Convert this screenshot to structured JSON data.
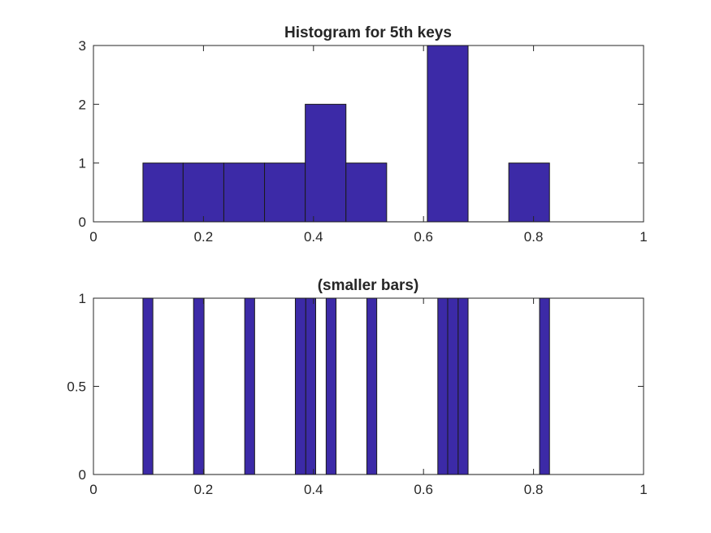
{
  "colors": {
    "bar_fill": "#3c2aa7",
    "axis": "#262626",
    "background": "#ffffff"
  },
  "chart_data": [
    {
      "type": "bar",
      "subtype": "histogram",
      "title": "Histogram for 5th keys",
      "xlabel": "",
      "ylabel": "",
      "xlim": [
        0,
        1
      ],
      "ylim": [
        0,
        3
      ],
      "xticks": [
        0,
        0.2,
        0.4,
        0.6,
        0.8,
        1
      ],
      "xtick_labels": [
        "0",
        "0.2",
        "0.4",
        "0.6",
        "0.8",
        "1"
      ],
      "yticks": [
        0,
        1,
        2,
        3
      ],
      "ytick_labels": [
        "0",
        "1",
        "2",
        "3"
      ],
      "grid": false,
      "bins": [
        {
          "x0": 0.09,
          "x1": 0.163,
          "count": 1
        },
        {
          "x0": 0.163,
          "x1": 0.237,
          "count": 1
        },
        {
          "x0": 0.237,
          "x1": 0.311,
          "count": 1
        },
        {
          "x0": 0.311,
          "x1": 0.385,
          "count": 1
        },
        {
          "x0": 0.385,
          "x1": 0.459,
          "count": 2
        },
        {
          "x0": 0.459,
          "x1": 0.533,
          "count": 1
        },
        {
          "x0": 0.533,
          "x1": 0.607,
          "count": 0
        },
        {
          "x0": 0.607,
          "x1": 0.681,
          "count": 3
        },
        {
          "x0": 0.681,
          "x1": 0.755,
          "count": 0
        },
        {
          "x0": 0.755,
          "x1": 0.829,
          "count": 1
        }
      ]
    },
    {
      "type": "bar",
      "subtype": "histogram",
      "title": "(smaller bars)",
      "xlabel": "",
      "ylabel": "",
      "xlim": [
        0,
        1
      ],
      "ylim": [
        0,
        1
      ],
      "xticks": [
        0,
        0.2,
        0.4,
        0.6,
        0.8,
        1
      ],
      "xtick_labels": [
        "0",
        "0.2",
        "0.4",
        "0.6",
        "0.8",
        "1"
      ],
      "yticks": [
        0,
        0.5,
        1
      ],
      "ytick_labels": [
        "0",
        "0.5",
        "1"
      ],
      "grid": false,
      "bin_range": [
        0.09,
        0.829
      ],
      "bin_width": 0.0185,
      "bins": [
        {
          "x0": 0.09,
          "x1": 0.108,
          "count": 1
        },
        {
          "x0": 0.182,
          "x1": 0.201,
          "count": 1
        },
        {
          "x0": 0.275,
          "x1": 0.293,
          "count": 1
        },
        {
          "x0": 0.367,
          "x1": 0.386,
          "count": 1
        },
        {
          "x0": 0.386,
          "x1": 0.404,
          "count": 1
        },
        {
          "x0": 0.423,
          "x1": 0.441,
          "count": 1
        },
        {
          "x0": 0.497,
          "x1": 0.515,
          "count": 1
        },
        {
          "x0": 0.626,
          "x1": 0.644,
          "count": 1
        },
        {
          "x0": 0.644,
          "x1": 0.663,
          "count": 1
        },
        {
          "x0": 0.663,
          "x1": 0.681,
          "count": 1
        },
        {
          "x0": 0.811,
          "x1": 0.829,
          "count": 1
        }
      ]
    }
  ]
}
